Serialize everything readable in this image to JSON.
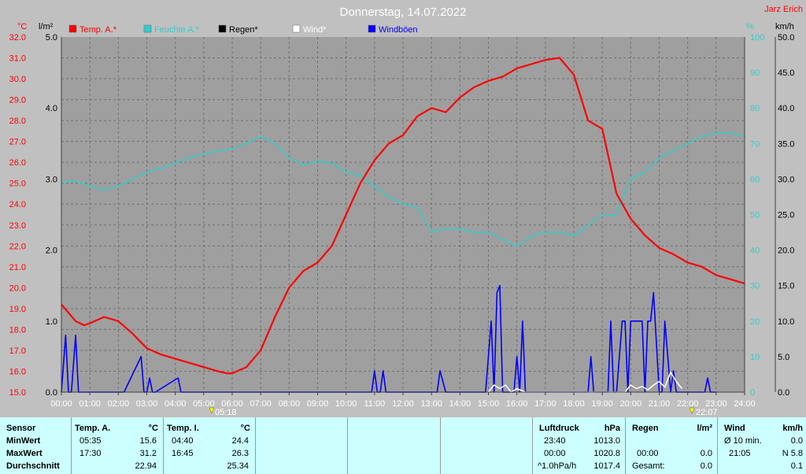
{
  "chart_data": {
    "type": "line",
    "title": "Donnerstag, 14.07.2022",
    "author": "Jarz Erich",
    "x_ticks": [
      "00:00",
      "01:00",
      "02:00",
      "03:00",
      "04:00",
      "05:00",
      "06:00",
      "07:00",
      "08:00",
      "09:00",
      "10:00",
      "11:00",
      "12:00",
      "13:00",
      "14:00",
      "15:00",
      "16:00",
      "17:00",
      "18:00",
      "19:00",
      "20:00",
      "21:00",
      "22:00",
      "23:00",
      "24:00"
    ],
    "xlim": [
      0,
      24
    ],
    "axes": {
      "temp": {
        "unit": "°C",
        "range": [
          15,
          32
        ],
        "ticks": [
          "15.0",
          "16.0",
          "17.0",
          "18.0",
          "19.0",
          "20.0",
          "21.0",
          "22.0",
          "23.0",
          "24.0",
          "25.0",
          "26.0",
          "27.0",
          "28.0",
          "29.0",
          "30.0",
          "31.0",
          "32.0"
        ]
      },
      "rain": {
        "unit": "l/m²",
        "range": [
          0,
          5
        ],
        "ticks": [
          "0.0",
          "1.0",
          "2.0",
          "3.0",
          "4.0",
          "5.0"
        ]
      },
      "humidity": {
        "unit": "%",
        "range": [
          0,
          100
        ],
        "ticks": [
          "0",
          "10",
          "20",
          "30",
          "40",
          "50",
          "60",
          "70",
          "80",
          "90",
          "100"
        ]
      },
      "wind": {
        "unit": "km/h",
        "range": [
          0,
          50
        ],
        "ticks": [
          "0.0",
          "5.0",
          "10.0",
          "15.0",
          "20.0",
          "25.0",
          "30.0",
          "35.0",
          "40.0",
          "45.0",
          "50.0"
        ]
      }
    },
    "legend": [
      {
        "label": "Temp. A.*",
        "color": "#ff0000"
      },
      {
        "label": "Feuchte A.*",
        "color": "#33cccc"
      },
      {
        "label": "Regen*",
        "color": "#000000"
      },
      {
        "label": "Wind*",
        "color": "#ffffff"
      },
      {
        "label": "Windböen",
        "color": "#0000ff"
      }
    ],
    "sunrise": "05:18",
    "sunset": "22:07",
    "series": [
      {
        "name": "Temp. A.*",
        "axis": "temp",
        "color": "#ff0000",
        "x": [
          0,
          0.5,
          0.8,
          1,
          1.5,
          2,
          2.5,
          3,
          3.5,
          4,
          4.5,
          5,
          5.5,
          5.8,
          6,
          6.5,
          7,
          7.5,
          8,
          8.5,
          9,
          9.5,
          10,
          10.5,
          11,
          11.5,
          12,
          12.5,
          13,
          13.5,
          14,
          14.5,
          15,
          15.5,
          16,
          16.5,
          17,
          17.5,
          18,
          18.5,
          19,
          19.5,
          20,
          20.5,
          21,
          21.5,
          22,
          22.5,
          23,
          23.5,
          24
        ],
        "y": [
          19.2,
          18.4,
          18.2,
          18.3,
          18.6,
          18.4,
          17.8,
          17.1,
          16.8,
          16.6,
          16.4,
          16.2,
          16.0,
          15.9,
          15.9,
          16.2,
          17.0,
          18.6,
          20.0,
          20.8,
          21.2,
          22.0,
          23.5,
          25.0,
          26.1,
          26.9,
          27.3,
          28.2,
          28.6,
          28.4,
          29.1,
          29.6,
          29.9,
          30.1,
          30.5,
          30.7,
          30.9,
          31.0,
          30.2,
          28.0,
          27.6,
          24.5,
          23.3,
          22.5,
          21.9,
          21.6,
          21.2,
          21.0,
          20.6,
          20.4,
          20.2
        ]
      },
      {
        "name": "Feuchte A.*",
        "axis": "humidity",
        "color": "#33cccc",
        "x": [
          0,
          0.5,
          1,
          1.5,
          2,
          2.5,
          3,
          3.5,
          4,
          4.5,
          5,
          5.5,
          6,
          6.5,
          7,
          7.5,
          8,
          8.5,
          9,
          9.5,
          10,
          10.5,
          11,
          11.5,
          12,
          12.5,
          13,
          13.5,
          14,
          14.5,
          15,
          15.5,
          16,
          16.5,
          17,
          17.5,
          18,
          18.5,
          19,
          19.5,
          20,
          20.5,
          21,
          21.5,
          22,
          22.5,
          23,
          23.5,
          24
        ],
        "y": [
          59,
          59.5,
          58,
          57,
          58,
          60,
          62,
          63,
          64.5,
          66,
          67,
          68,
          68.5,
          70,
          72,
          70,
          66,
          64,
          65,
          64.5,
          62,
          61,
          58,
          55,
          53,
          52,
          45,
          46,
          46,
          45,
          45,
          43,
          41,
          44,
          45,
          45,
          44,
          47,
          50,
          50,
          60,
          62,
          66,
          68,
          70,
          72,
          73,
          73,
          72
        ]
      },
      {
        "name": "Wind*",
        "axis": "wind",
        "color": "#ffffff",
        "x": [
          15.0,
          15.2,
          15.4,
          15.6,
          15.8,
          16.0,
          16.3,
          16.5,
          19.8,
          20.0,
          20.2,
          20.4,
          20.6,
          20.8,
          21.0,
          21.2,
          21.4,
          21.6,
          21.8
        ],
        "y": [
          0,
          1,
          0.5,
          1,
          0,
          0.5,
          0,
          0,
          0,
          1,
          0.5,
          0.8,
          0.3,
          1.0,
          1.5,
          0.7,
          2.8,
          1.5,
          0.5
        ]
      },
      {
        "name": "Windböen",
        "axis": "wind",
        "color": "#0000ff",
        "x": [
          0,
          0.15,
          0.25,
          0.35,
          0.5,
          0.6,
          0.7,
          0.8,
          0.9,
          1.0,
          1.1,
          1.2,
          1.3,
          1.4,
          1.45,
          1.5,
          1.6,
          1.7,
          1.9,
          2.0,
          2.1,
          2.2,
          2.8,
          2.9,
          3.0,
          3.1,
          3.2,
          3.3,
          4.1,
          4.2,
          4.3,
          10.9,
          11.0,
          11.1,
          11.2,
          11.3,
          11.4,
          11.5,
          11.6,
          12.9,
          13.0,
          13.1,
          13.2,
          13.3,
          13.5,
          14.9,
          15.0,
          15.1,
          15.2,
          15.3,
          15.4,
          15.5,
          15.6,
          15.7,
          15.9,
          16.0,
          16.1,
          16.2,
          16.3,
          16.4,
          16.5,
          18.5,
          18.6,
          18.7,
          19.2,
          19.3,
          19.4,
          19.5,
          19.7,
          19.8,
          19.9,
          20.0,
          20.1,
          20.2,
          20.3,
          20.4,
          20.5,
          20.6,
          20.7,
          20.8,
          21.0,
          21.1,
          21.2,
          21.3,
          21.4,
          21.5,
          21.6,
          21.7,
          21.8,
          22.0,
          22.1,
          22.2,
          22.3,
          22.4,
          22.5,
          22.6,
          22.7,
          22.8,
          22.9,
          23.0
        ],
        "y": [
          0,
          8,
          0,
          0,
          8,
          0,
          0,
          0,
          0,
          0,
          0,
          0,
          0,
          0,
          0,
          0,
          0,
          0,
          0,
          0,
          0,
          0,
          5,
          0,
          0,
          2,
          0,
          0,
          2,
          0,
          0,
          0,
          3,
          0,
          0,
          3,
          0,
          0,
          0,
          0,
          0,
          0,
          0,
          3,
          0,
          0,
          5,
          10,
          0,
          14,
          15,
          0,
          0,
          0,
          0,
          5,
          0,
          10,
          0,
          0,
          0,
          0,
          5,
          0,
          0,
          10,
          0,
          0,
          10,
          10,
          0,
          10,
          10,
          10,
          10,
          10,
          0,
          10,
          10,
          14,
          0,
          0,
          10,
          5,
          0,
          3,
          0,
          0,
          0,
          0,
          0,
          0,
          0,
          0,
          0,
          0,
          2,
          0,
          0,
          0
        ]
      }
    ],
    "grid": true,
    "legend_position": "top"
  },
  "stats": {
    "sensor": {
      "header": "Sensor",
      "rows": [
        "MinWert",
        "MaxWert",
        "Durchschnitt"
      ]
    },
    "temp_a": {
      "header": "Temp. A.",
      "unit": "°C",
      "rows": [
        [
          "05:35",
          "15.6"
        ],
        [
          "17:30",
          "31.2"
        ],
        [
          "",
          "22.94"
        ]
      ]
    },
    "temp_i": {
      "header": "Temp. I.",
      "unit": "°C",
      "rows": [
        [
          "04:40",
          "24.4"
        ],
        [
          "16:45",
          "26.3"
        ],
        [
          "",
          "25.34"
        ]
      ]
    },
    "luftdruck": {
      "header": "Luftdruck",
      "unit": "hPa",
      "rows": [
        [
          "23:40",
          "1013.0"
        ],
        [
          "00:00",
          "1020.8"
        ],
        [
          "^1.0hPa/h",
          "1017.4"
        ]
      ]
    },
    "regen": {
      "header": "Regen",
      "unit": "l/m²",
      "rows": [
        [
          "",
          ""
        ],
        [
          "00:00",
          "0.0"
        ],
        [
          "Gesamt:",
          "0.0"
        ]
      ]
    },
    "wind": {
      "header": "Wind",
      "unit": "km/h",
      "rows": [
        [
          "Ø 10 min.",
          "0.0"
        ],
        [
          "21:05",
          "N 5.8"
        ],
        [
          "",
          "0.1"
        ]
      ]
    }
  }
}
